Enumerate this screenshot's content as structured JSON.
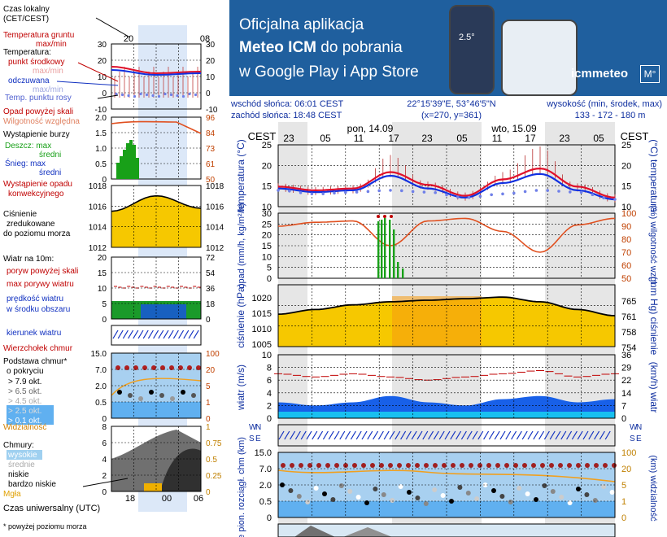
{
  "banner": {
    "line1": "Oficjalna aplikacja",
    "line2_bold": "Meteo ICM",
    "line2_rest": " do pobrania",
    "line3": "w Google Play i App Store",
    "brand": "icmmeteo",
    "brand_mark": "M°",
    "phone_temp": "2.5°"
  },
  "info": {
    "sunrise": "wschód słońca: 06:01 CEST",
    "sunset": "zachód słońca: 18:48 CEST",
    "coords": "22°15'39\"E, 53°46'5\"N",
    "grid": "(x=270,  y=361)",
    "elev_label": "wysokość (min, środek, max)",
    "elev_values": "133 - 172 - 180 m"
  },
  "legend": {
    "local_time": "Czas lokalny",
    "local_time_zone": "(CET/CEST)",
    "ground_temp": "Temperatura gruntu",
    "ground_temp_range": "max/min",
    "temperature": "Temperatura:",
    "center_point": "punkt środkowy",
    "center_range": "max/min",
    "perceived": "odczuwana",
    "perceived_range": "max/min",
    "dew": "Temp. punktu rosy",
    "precip_above": "Opad powyżej skali",
    "humidity": "Wilgotność względna",
    "storm": "Wystąpienie burzy",
    "rain": "Deszcz: max",
    "rain_mid": "średni",
    "snow": "Śnieg: max",
    "snow_mid": "średni",
    "conv": "Wystąpienie opadu",
    "conv2": "konwekcyjnego",
    "pressure1": "Ciśnienie",
    "pressure2": "zredukowane",
    "pressure3": "do poziomu morza",
    "wind10": "Wiatr na 10m:",
    "gust_above": "poryw powyżej skali",
    "gust_max": "max porywy wiatru",
    "wind_speed": "prędkość wiatru",
    "wind_speed2": "w środku obszaru",
    "wind_dir": "kierunek wiatru",
    "cloud_top": "Wierzchołek chmur",
    "cloud_base": "Podstawa chmur*",
    "cloud_base2": "o pokryciu",
    "okt1": "> 7.9 okt.",
    "okt2": "> 6.5 okt.",
    "okt3": "> 4.5 okt.",
    "okt4": "> 2.5 okt.",
    "okt5": "> 0.1 okt.",
    "visibility": "Widzialność",
    "clouds": "Chmury:",
    "high": "wysokie",
    "mid": "średnie",
    "low": "niskie",
    "very_low": "bardzo niskie",
    "fog": "Mgła",
    "utc": "Czas uniwersalny (UTC)",
    "footnote": "* powyżej poziomu morza"
  },
  "mini_axes": {
    "top_times": [
      "20",
      "02",
      "08"
    ],
    "bottom_times": [
      "18",
      "00",
      "06"
    ],
    "temp_ticks": [
      "30",
      "20",
      "10",
      "0",
      "-10"
    ],
    "hum_left": [
      "2.0",
      "1.5",
      "1.0",
      "0.5",
      "0"
    ],
    "hum_right": [
      "96",
      "84",
      "73",
      "61",
      "50"
    ],
    "press_left": [
      "1018",
      "1016",
      "1014",
      "1012"
    ],
    "press_right": [
      "1018",
      "1016",
      "1014",
      "1012"
    ],
    "wind_left": [
      "20",
      "15",
      "10",
      "5",
      "0"
    ],
    "wind_right": [
      "72",
      "54",
      "36",
      "18",
      "0"
    ],
    "cloud_left": [
      "15.0",
      "7.0",
      "2.0",
      "0.5",
      "0"
    ],
    "cloud_right": [
      "100",
      "20",
      "5",
      "1",
      "0"
    ],
    "cc_left": [
      "6",
      "4",
      "2",
      "0"
    ],
    "cc_right": [
      "1",
      "0.75",
      "0.5",
      "0.25",
      "0"
    ],
    "cc_mid": [
      "8"
    ]
  },
  "main": {
    "cest": "CEST",
    "day1": "pon, 14.09",
    "day2": "wto, 15.09",
    "hours": [
      "23",
      "05",
      "11",
      "17",
      "23",
      "05",
      "11",
      "17",
      "23",
      "05"
    ],
    "temp_axis_left": "temperatura (°C)",
    "temp_axis_right": "(°C) temperatura",
    "temp_ticks": [
      "25",
      "20",
      "15",
      "10"
    ],
    "precip_axis_left": "opad (mm/h, kg/m²/h)",
    "precip_axis_right": "(%) wilgotność wzgl.",
    "precip_ticks": [
      "30",
      "25",
      "20",
      "15",
      "10",
      "5",
      "0"
    ],
    "hum_ticks": [
      "100",
      "90",
      "80",
      "70",
      "60",
      "50"
    ],
    "press_axis_left": "ciśnienie (hPa)",
    "press_axis_right": "(mm Hg) ciśnienie",
    "press_ticks": [
      "1020",
      "1015",
      "1010",
      "1005"
    ],
    "press_mmhg_ticks": [
      "765",
      "761",
      "758",
      "754"
    ],
    "wind_axis_left": "wiatr (m/s)",
    "wind_axis_right": "(km/h) wiatr",
    "wind_ticks": [
      "10",
      "8",
      "6",
      "4",
      "2",
      "0"
    ],
    "wind_kmh_ticks": [
      "36",
      "29",
      "22",
      "14",
      "7",
      "0"
    ],
    "cloud_axis_left": "e pion. rozciągł. chm (km)",
    "cloud_axis_right": "(km) widzialność",
    "cloud_ticks": [
      "15.0",
      "7.0",
      "2.0",
      "0.5",
      "0"
    ],
    "vis_ticks": [
      "100",
      "20",
      "5",
      "1",
      "0"
    ],
    "compass_left": [
      "W",
      "S",
      "N",
      "E"
    ],
    "compass_right": [
      "W",
      "S",
      "N",
      "E"
    ]
  },
  "colors": {
    "temp": "#e0102a",
    "perceived": "#1030e0",
    "dew": "#7080e8",
    "humidity": "#e05020",
    "pressure_fill": "#f6c800",
    "wind_fill": "#1860e8",
    "rain": "#18a018",
    "banner": "#1f5f9e"
  },
  "chart_data": [
    {
      "type": "line",
      "title": "temperatura (°C)",
      "x": [
        "23",
        "05",
        "11",
        "17",
        "23",
        "05",
        "11",
        "17",
        "23",
        "05"
      ],
      "ylim": [
        8,
        25
      ],
      "series": [
        {
          "name": "punkt środkowy",
          "values": [
            13.5,
            12.5,
            13.0,
            17.5,
            14.0,
            11.0,
            15.5,
            18.5,
            13.5,
            10.5
          ]
        },
        {
          "name": "odczuwana",
          "values": [
            13.0,
            12.0,
            12.5,
            16.5,
            13.0,
            10.5,
            14.5,
            17.0,
            12.5,
            10.0
          ]
        },
        {
          "name": "Temp. punktu rosy",
          "values": [
            12.5,
            11.5,
            12.0,
            12.5,
            12.0,
            10.5,
            11.5,
            12.5,
            12.0,
            10.0
          ]
        }
      ]
    },
    {
      "type": "line",
      "title": "opad (mm/h, kg/m²/h) / wilgotność wzgl. (%)",
      "x": [
        "23",
        "05",
        "11",
        "17",
        "23",
        "05",
        "11",
        "17",
        "23",
        "05"
      ],
      "ylim": [
        0,
        30
      ],
      "series": [
        {
          "name": "Wilgotność względna",
          "values": [
            90,
            93,
            94,
            75,
            94,
            96,
            86,
            70,
            91,
            96
          ]
        },
        {
          "name": "Deszcz: max",
          "values": [
            0,
            0,
            0,
            12,
            3,
            0,
            0,
            0,
            0,
            0
          ]
        }
      ]
    },
    {
      "type": "area",
      "title": "ciśnienie (hPa)",
      "x": [
        "23",
        "05",
        "11",
        "17",
        "23",
        "05",
        "11",
        "17",
        "23",
        "05"
      ],
      "ylim": [
        1005,
        1025
      ],
      "values": [
        1015.5,
        1017.0,
        1018.5,
        1019.5,
        1020.0,
        1020.5,
        1021.0,
        1019.5,
        1017.0,
        1015.0
      ]
    },
    {
      "type": "area",
      "title": "wiatr (m/s)",
      "x": [
        "23",
        "05",
        "11",
        "17",
        "23",
        "05",
        "11",
        "17",
        "23",
        "05"
      ],
      "ylim": [
        0,
        10
      ],
      "series": [
        {
          "name": "prędkość wiatru",
          "values": [
            2.5,
            2.0,
            2.5,
            3.5,
            2.5,
            2.0,
            3.0,
            3.5,
            2.5,
            3.0
          ]
        },
        {
          "name": "max porywy wiatru",
          "values": [
            7.0,
            6.5,
            7.0,
            6.5,
            6.0,
            6.5,
            7.0,
            7.5,
            6.5,
            7.0
          ]
        }
      ]
    },
    {
      "type": "line",
      "title": "Temperatura (mini)",
      "x": [
        "20",
        "02",
        "08"
      ],
      "ylim": [
        -10,
        30
      ],
      "series": [
        {
          "name": "punkt środkowy",
          "values": [
            16,
            12,
            13
          ]
        },
        {
          "name": "odczuwana",
          "values": [
            14,
            11,
            12
          ]
        }
      ]
    },
    {
      "type": "area",
      "title": "Ciśnienie (mini)",
      "x": [
        "20",
        "02",
        "08"
      ],
      "ylim": [
        1012,
        1018
      ],
      "values": [
        1015.5,
        1017.0,
        1015.8
      ]
    }
  ]
}
